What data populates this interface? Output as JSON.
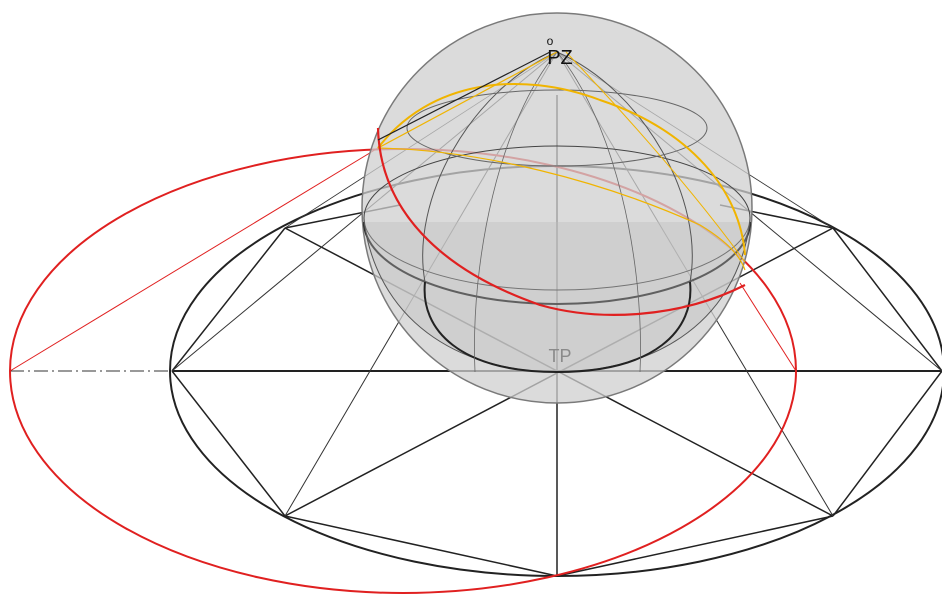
{
  "labels": {
    "zenith": "PZ",
    "zenith_mark": "o",
    "center": "TP"
  },
  "colors": {
    "background": "#ffffff",
    "sphere_fill": "#cfcfcf",
    "sphere_stroke": "#7a7a7a",
    "black_line": "#222222",
    "red_line": "#e02020",
    "yellow_line": "#f0b400",
    "center_label": "#8a8a8a",
    "zenith_label": "#111111"
  }
}
